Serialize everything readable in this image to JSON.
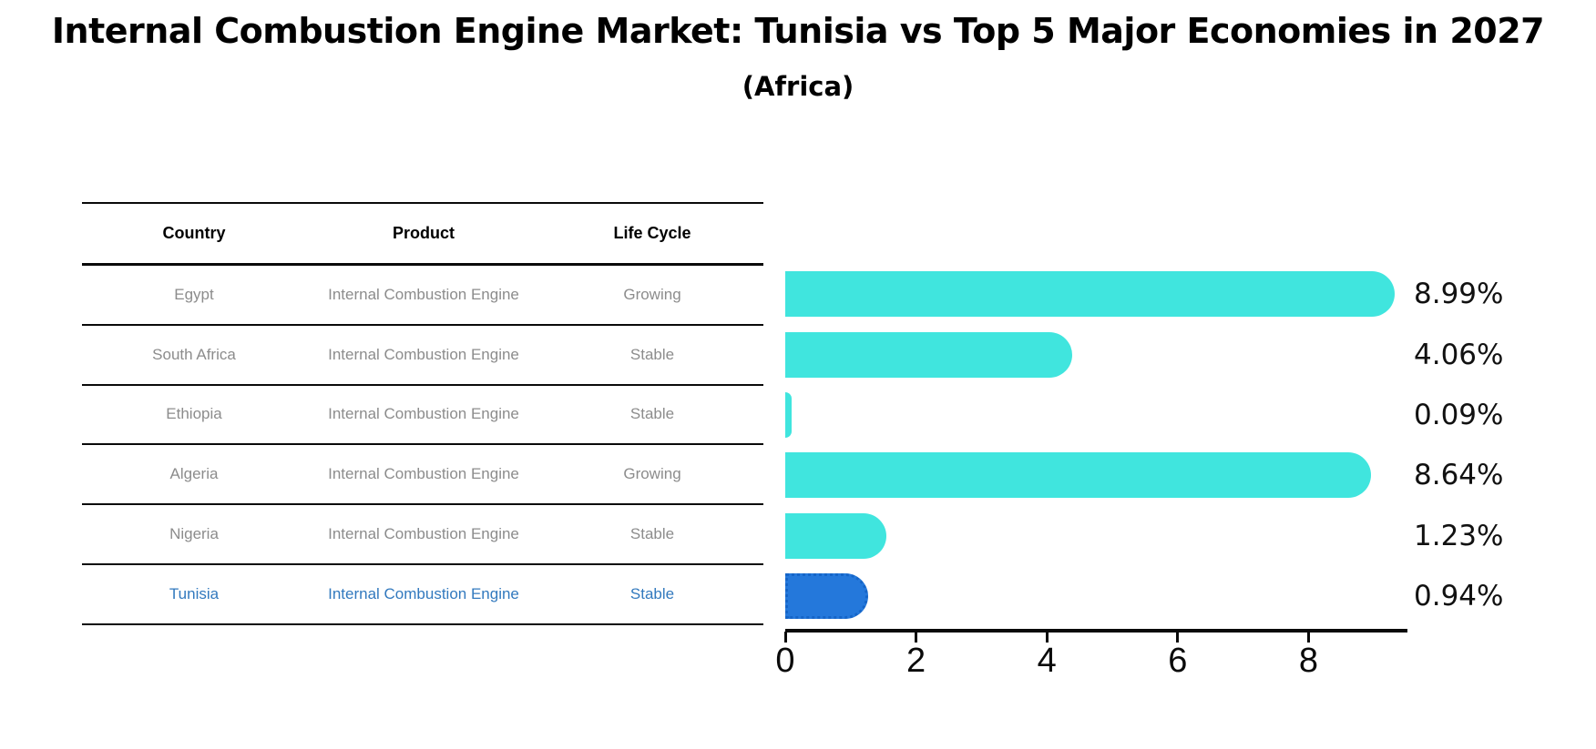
{
  "title": "Internal Combustion Engine Market: Tunisia vs Top 5 Major Economies in 2027",
  "subtitle": "(Africa)",
  "table": {
    "headers": [
      "Country",
      "Product",
      "Life Cycle"
    ],
    "rows": [
      {
        "country": "Egypt",
        "product": "Internal Combustion Engine",
        "life_cycle": "Growing",
        "highlighted": false
      },
      {
        "country": "South Africa",
        "product": "Internal Combustion Engine",
        "life_cycle": "Stable",
        "highlighted": false
      },
      {
        "country": "Ethiopia",
        "product": "Internal Combustion Engine",
        "life_cycle": "Stable",
        "highlighted": false
      },
      {
        "country": "Algeria",
        "product": "Internal Combustion Engine",
        "life_cycle": "Growing",
        "highlighted": false
      },
      {
        "country": "Nigeria",
        "product": "Internal Combustion Engine",
        "life_cycle": "Stable",
        "highlighted": false
      },
      {
        "country": "Tunisia",
        "product": "Internal Combustion Engine",
        "life_cycle": "Stable",
        "highlighted": true
      }
    ]
  },
  "chart_data": {
    "type": "bar",
    "orientation": "horizontal",
    "title": "Internal Combustion Engine Market: Tunisia vs Top 5 Major Economies in 2027",
    "subtitle": "(Africa)",
    "categories": [
      "Egypt",
      "South Africa",
      "Ethiopia",
      "Algeria",
      "Nigeria",
      "Tunisia"
    ],
    "values": [
      8.99,
      4.06,
      0.09,
      8.64,
      1.23,
      0.94
    ],
    "value_labels": [
      "8.99%",
      "4.06%",
      "0.09%",
      "8.64%",
      "1.23%",
      "0.94%"
    ],
    "xticks": [
      0,
      2,
      4,
      6,
      8
    ],
    "xlim": [
      0,
      9.5
    ],
    "grid": false,
    "legend": false,
    "highlight_index": 5,
    "colors": {
      "bar": "#40E5DE",
      "highlight_bar": "#2478DB",
      "highlight_border": "#1565C8",
      "axis": "#0a0a0a",
      "value_label": "#111111",
      "row_text": "#8c8c8c",
      "highlight_text": "#3279BE"
    }
  }
}
